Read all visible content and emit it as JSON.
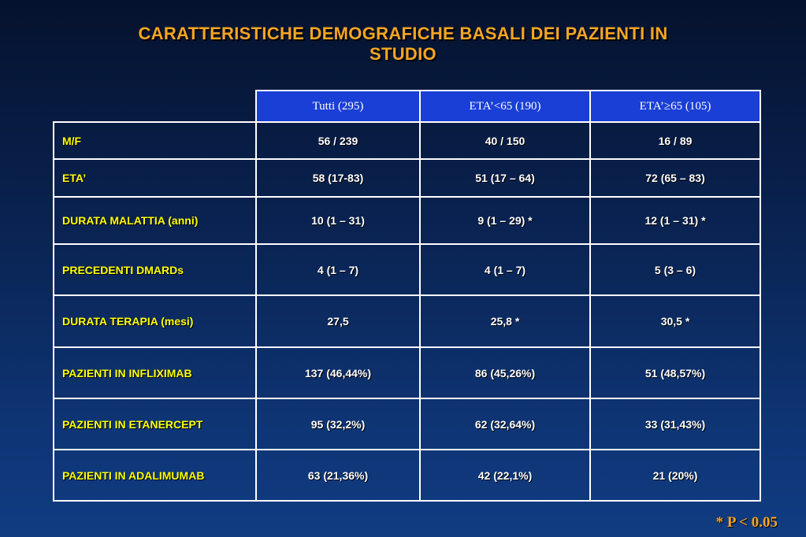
{
  "title": {
    "line1": "CARATTERISTICHE DEMOGRAFICHE BASALI DEI PAZIENTI IN",
    "line2": "STUDIO"
  },
  "table": {
    "headers": [
      "Tutti (295)",
      "ETA’<65 (190)",
      "ETA’≥65 (105)"
    ],
    "rows": [
      {
        "label": "M/F",
        "values": [
          "56 / 239",
          "40 / 150",
          "16 / 89"
        ]
      },
      {
        "label": "ETA’",
        "values": [
          "58 (17-83)",
          "51 (17 – 64)",
          "72 (65 – 83)"
        ]
      },
      {
        "label": "DURATA MALATTIA (anni)",
        "values": [
          "10 (1 – 31)",
          "9 (1 – 29) *",
          "12 (1 – 31) *"
        ]
      },
      {
        "label": "PRECEDENTI DMARDs",
        "values": [
          "4 (1 – 7)",
          "4 (1 – 7)",
          "5 (3 – 6)"
        ]
      },
      {
        "label": "DURATA TERAPIA (mesi)",
        "values": [
          "27,5",
          "25,8 *",
          "30,5 *"
        ]
      },
      {
        "label": "PAZIENTI IN INFLIXIMAB",
        "values": [
          "137 (46,44%)",
          "86 (45,26%)",
          "51 (48,57%)"
        ]
      },
      {
        "label": "PAZIENTI IN ETANERCEPT",
        "values": [
          "95 (32,2%)",
          "62 (32,64%)",
          "33 (31,43%)"
        ]
      },
      {
        "label": "PAZIENTI IN ADALIMUMAB",
        "values": [
          "63 (21,36%)",
          "42 (22,1%)",
          "21 (20%)"
        ]
      }
    ]
  },
  "footnote": "* P < 0.05"
}
